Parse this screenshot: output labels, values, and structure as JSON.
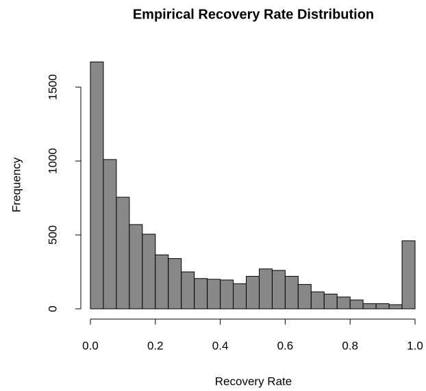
{
  "chart_data": {
    "type": "histogram",
    "title": "Empirical Recovery Rate Distribution",
    "x_label": "Recovery Rate",
    "y_label": "Frequency",
    "bins": [
      0,
      0.04,
      0.08,
      0.12,
      0.16,
      0.2,
      0.24,
      0.28,
      0.32,
      0.36,
      0.4,
      0.44,
      0.48,
      0.52,
      0.56,
      0.6,
      0.64,
      0.68,
      0.72,
      0.76,
      0.8,
      0.84,
      0.88,
      0.92,
      0.96,
      1
    ],
    "values": [
      1670,
      1010,
      755,
      570,
      505,
      365,
      340,
      250,
      205,
      200,
      195,
      170,
      220,
      270,
      260,
      220,
      165,
      115,
      100,
      80,
      60,
      35,
      35,
      28,
      460
    ],
    "color": "#888888",
    "xlim": [
      0,
      1
    ],
    "xticks": [
      {
        "value": 0,
        "label": "0.0"
      },
      0.2,
      0.4,
      0.6,
      0.8,
      {
        "value": 1,
        "label": "1.0"
      }
    ],
    "ylim": [
      0,
      1700
    ],
    "yticks": [
      0,
      500,
      1000,
      1500
    ]
  }
}
